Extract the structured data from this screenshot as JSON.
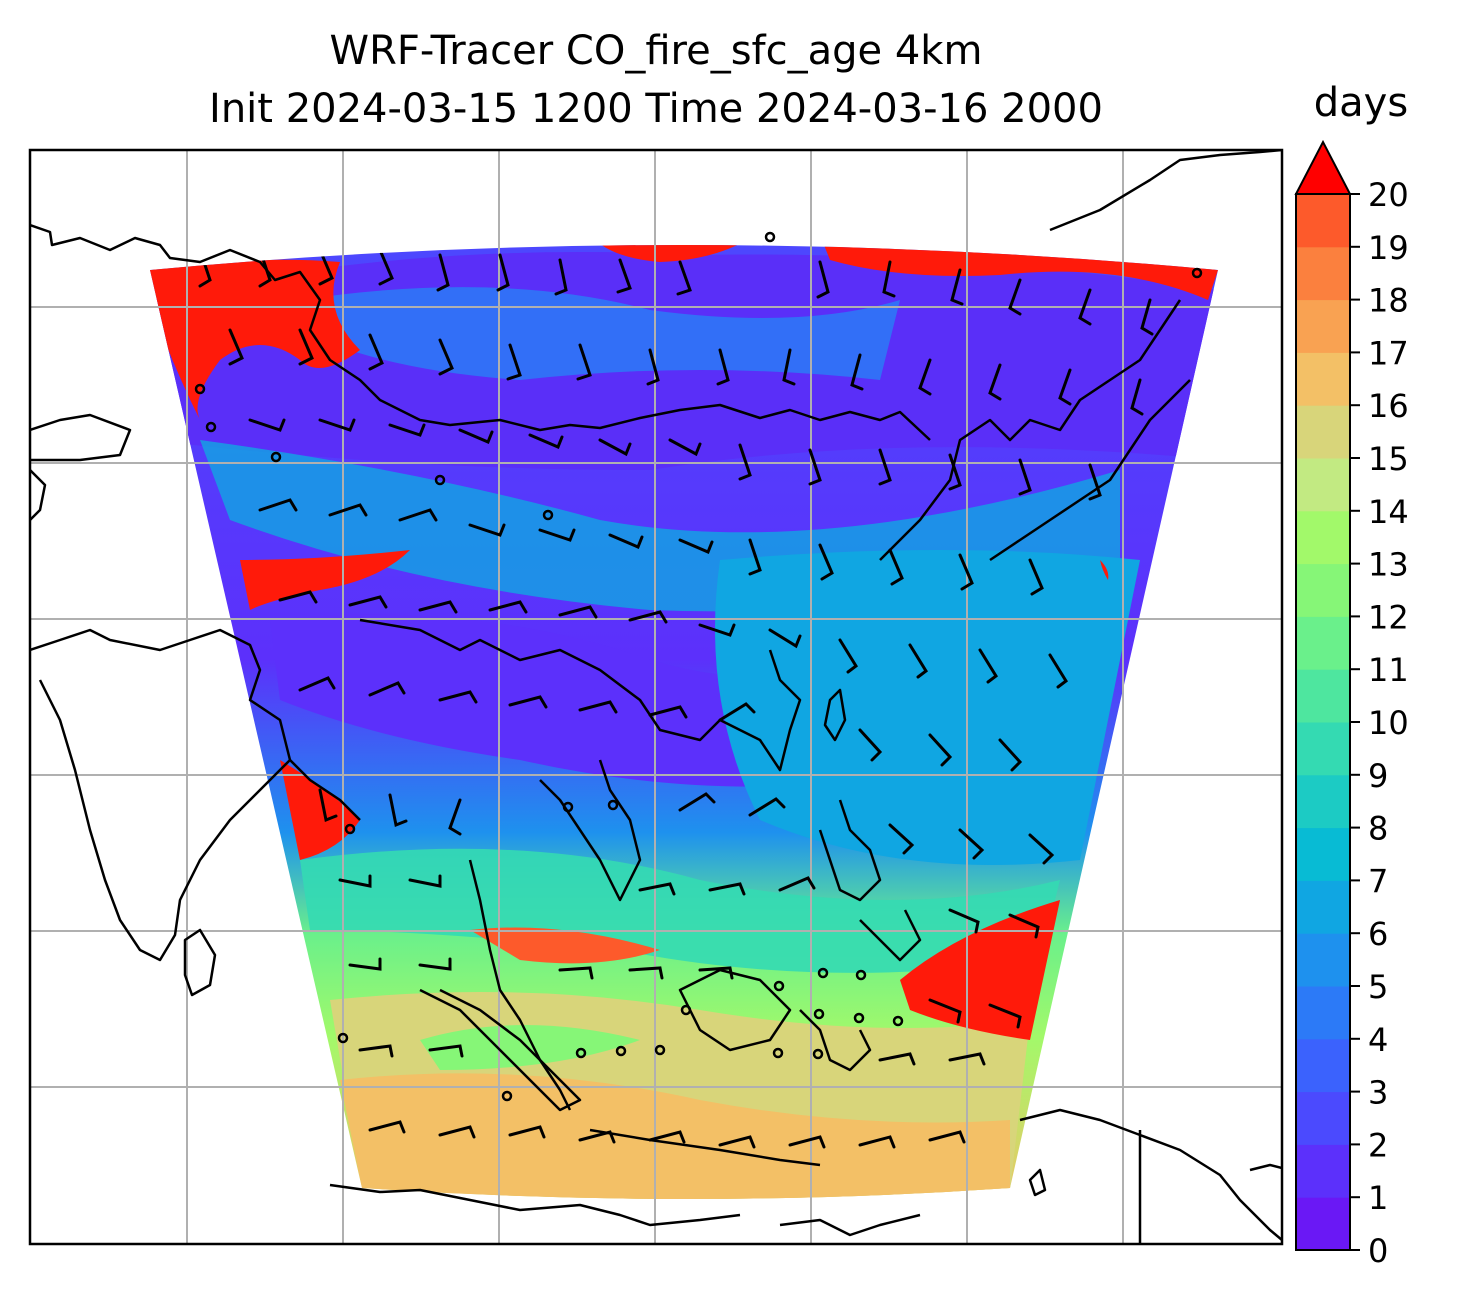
{
  "title": {
    "line1": "WRF-Tracer CO_fire_sfc_age 4km",
    "line2": "Init 2024-03-15 1200 Time 2024-03-16 2000"
  },
  "colorbar": {
    "label": "days",
    "ticks": [
      "0",
      "1",
      "2",
      "3",
      "4",
      "5",
      "6",
      "7",
      "8",
      "9",
      "10",
      "11",
      "12",
      "13",
      "14",
      "15",
      "16",
      "17",
      "18",
      "19",
      "20"
    ],
    "colors": [
      "#6a18f5",
      "#5c30fb",
      "#4b4afe",
      "#3b62fd",
      "#2c7af7",
      "#1e91ee",
      "#10a6e2",
      "#08bbd4",
      "#1ccbc4",
      "#34dab2",
      "#4ee69f",
      "#6af08b",
      "#86f677",
      "#a2f96a",
      "#c2ea82",
      "#d8d57a",
      "#f3c066",
      "#f9a252",
      "#fb803e",
      "#fd5a2b",
      "#f9231a"
    ],
    "extend_color": "#ff0000"
  },
  "map": {
    "field_colors": {
      "violet": "#5a2ff8",
      "blue": "#3460f4",
      "mid_blue": "#1b8fe8",
      "cyan": "#12b4df",
      "teal": "#38d6c0",
      "green": "#7ff0a0",
      "yellow": "#d6e080",
      "orange": "#f2bb68",
      "red": "#ff1a0a"
    },
    "gridline_color": "#b0b0b0",
    "coastline_color": "#000000"
  }
}
